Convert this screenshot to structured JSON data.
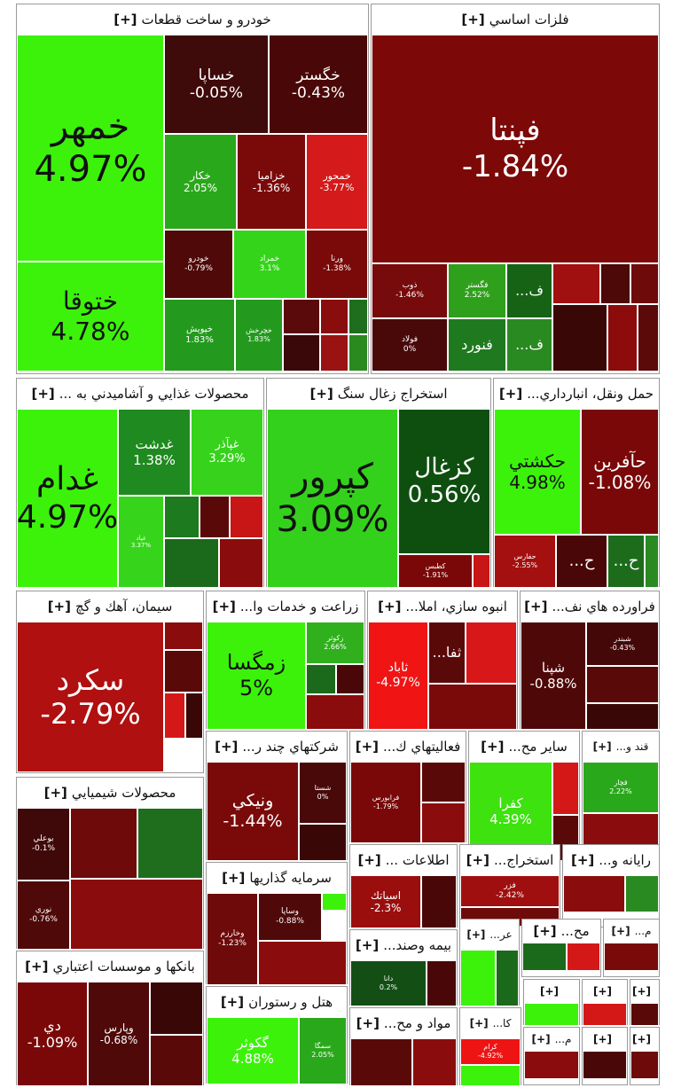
{
  "sectors": [
    {
      "name": "خودرو و ساخت قطعات",
      "tiles": [
        {
          "symbol": "خمهر",
          "change": "4.97%",
          "color": "#3cf20b"
        },
        {
          "symbol": "ختوقا",
          "change": "4.78%",
          "color": "#3cf20b"
        },
        {
          "symbol": "خساپا",
          "change": "-0.05%",
          "color": "#3f0a0a"
        },
        {
          "symbol": "خگستر",
          "change": "-0.43%",
          "color": "#4a0707"
        },
        {
          "symbol": "خکار",
          "change": "2.05%",
          "color": "#2aa81b"
        },
        {
          "symbol": "خزامیا",
          "change": "-1.36%",
          "color": "#7a0a0a"
        },
        {
          "symbol": "خمحور",
          "change": "-3.77%",
          "color": "#d41a1a"
        },
        {
          "symbol": "خودرو",
          "change": "-0.79%",
          "color": "#4f0909"
        },
        {
          "symbol": "خمراد",
          "change": "3.1%",
          "color": "#34d41a"
        },
        {
          "symbol": "ورنا",
          "change": "-1.38%",
          "color": "#7a0909"
        },
        {
          "symbol": "خپویش",
          "change": "1.83%",
          "color": "#239a1e"
        },
        {
          "symbol": "خچرخش",
          "change": "1.83%",
          "color": "#239a1e"
        },
        {
          "symbol": "",
          "change": "",
          "color": "#5a0a0a"
        },
        {
          "symbol": "",
          "change": "",
          "color": "#8a0d0d"
        },
        {
          "symbol": "",
          "change": "",
          "color": "#1e6e1e"
        },
        {
          "symbol": "",
          "change": "",
          "color": "#3a0808"
        },
        {
          "symbol": "",
          "change": "",
          "color": "#9b1212"
        },
        {
          "symbol": "",
          "change": "",
          "color": "#2a8a1f"
        }
      ]
    },
    {
      "name": "فلزات اساسي",
      "tiles": [
        {
          "symbol": "فپنتا",
          "change": "-1.84%",
          "color": "#7d0808"
        },
        {
          "symbol": "ذوب",
          "change": "-1.46%",
          "color": "#770a0a"
        },
        {
          "symbol": "فگستر",
          "change": "2.52%",
          "color": "#2fa01c"
        },
        {
          "symbol": "ف...",
          "change": "",
          "color": "#166316"
        },
        {
          "symbol": "فولاد",
          "change": "0%",
          "color": "#4a0909"
        },
        {
          "symbol": "فنورد",
          "change": "",
          "color": "#1f7a1f"
        },
        {
          "symbol": "ف...",
          "change": "",
          "color": "#2a8a22"
        },
        {
          "symbol": "",
          "change": "",
          "color": "#a01010"
        },
        {
          "symbol": "",
          "change": "",
          "color": "#4d0808"
        },
        {
          "symbol": "",
          "change": "",
          "color": "#6e0a0a"
        },
        {
          "symbol": "",
          "change": "",
          "color": "#3a0707"
        },
        {
          "symbol": "",
          "change": "",
          "color": "#8c0c0c"
        },
        {
          "symbol": "",
          "change": "",
          "color": "#5c0909"
        }
      ]
    },
    {
      "name": "محصولات غذايي و آشاميدني به ...",
      "tiles": [
        {
          "symbol": "غدام",
          "change": "4.97%",
          "color": "#3cf20b"
        },
        {
          "symbol": "غدشت",
          "change": "1.38%",
          "color": "#1f8a1f"
        },
        {
          "symbol": "غپآذر",
          "change": "3.29%",
          "color": "#36d21c"
        },
        {
          "symbol": "غپاد",
          "change": "3.37%",
          "color": "#37d41c"
        },
        {
          "symbol": "",
          "change": "",
          "color": "#1e7a1e"
        },
        {
          "symbol": "",
          "change": "",
          "color": "#5a0909"
        },
        {
          "symbol": "",
          "change": "",
          "color": "#c81616"
        },
        {
          "symbol": "",
          "change": "",
          "color": "#1b6a1b"
        },
        {
          "symbol": "",
          "change": "",
          "color": "#8a0c0c"
        }
      ]
    },
    {
      "name": "استخراج زغال سنگ",
      "tiles": [
        {
          "symbol": "كپرور",
          "change": "3.09%",
          "color": "#33d11b"
        },
        {
          "symbol": "كزغال",
          "change": "0.56%",
          "color": "#0e4f10"
        },
        {
          "symbol": "كطبس",
          "change": "-1.91%",
          "color": "#7a0808"
        },
        {
          "symbol": "",
          "change": "",
          "color": "#c81515"
        }
      ]
    },
    {
      "name": "حمل ونقل، انبارداري...",
      "tiles": [
        {
          "symbol": "حكشتي",
          "change": "4.98%",
          "color": "#3cf20b"
        },
        {
          "symbol": "حآفرين",
          "change": "-1.08%",
          "color": "#7a0808"
        },
        {
          "symbol": "حفارس",
          "change": "-2.55%",
          "color": "#a40f0f"
        },
        {
          "symbol": "ح...",
          "change": "",
          "color": "#4a0707"
        },
        {
          "symbol": "ح...",
          "change": "",
          "color": "#1c6c1c"
        },
        {
          "symbol": "",
          "change": "",
          "color": "#2a8a22"
        }
      ]
    },
    {
      "name": "سيمان، آهك و گچ",
      "tiles": [
        {
          "symbol": "سكرد",
          "change": "-2.79%",
          "color": "#b01010"
        },
        {
          "symbol": "",
          "change": "",
          "color": "#8a0c0c"
        },
        {
          "symbol": "",
          "change": "",
          "color": "#5a0909"
        },
        {
          "symbol": "",
          "change": "",
          "color": "#d41818"
        },
        {
          "symbol": "",
          "change": "",
          "color": "#3a0707"
        }
      ]
    },
    {
      "name": "زراعت و خدمات وا...",
      "tiles": [
        {
          "symbol": "زمگسا",
          "change": "5%",
          "color": "#3cf20b"
        },
        {
          "symbol": "زكوثر",
          "change": "2.66%",
          "color": "#2fb01c"
        },
        {
          "symbol": "",
          "change": "",
          "color": "#1b6a1b"
        },
        {
          "symbol": "",
          "change": "",
          "color": "#4a0707"
        },
        {
          "symbol": "",
          "change": "",
          "color": "#8a0c0c"
        }
      ]
    },
    {
      "name": "انبوه سازي، املا...",
      "tiles": [
        {
          "symbol": "ثاباد",
          "change": "-4.97%",
          "color": "#f01414"
        },
        {
          "symbol": "ثفا...",
          "change": "",
          "color": "#5a0909"
        },
        {
          "symbol": "",
          "change": "",
          "color": "#d81818"
        },
        {
          "symbol": "",
          "change": "",
          "color": "#7a0a0a"
        }
      ]
    },
    {
      "name": "فراورده هاي نف...",
      "tiles": [
        {
          "symbol": "شپنا",
          "change": "-0.88%",
          "color": "#4f0808"
        },
        {
          "symbol": "شبندر",
          "change": "-0.43%",
          "color": "#440808"
        },
        {
          "symbol": "",
          "change": "",
          "color": "#5a0909"
        },
        {
          "symbol": "",
          "change": "",
          "color": "#3a0707"
        }
      ]
    },
    {
      "name": "محصولات شيميايي",
      "tiles": [
        {
          "symbol": "بوعلي",
          "change": "-0.1%",
          "color": "#400909"
        },
        {
          "symbol": "نوري",
          "change": "-0.76%",
          "color": "#4f0909"
        },
        {
          "symbol": "",
          "change": "",
          "color": "#6e0a0a"
        },
        {
          "symbol": "",
          "change": "",
          "color": "#1e6e1e"
        },
        {
          "symbol": "",
          "change": "",
          "color": "#8a0c0c"
        }
      ]
    },
    {
      "name": "شركتهاي چند ر...",
      "tiles": [
        {
          "symbol": "ونيكي",
          "change": "-1.44%",
          "color": "#7a0a0a"
        },
        {
          "symbol": "شستا",
          "change": "0%",
          "color": "#4a0909"
        },
        {
          "symbol": "",
          "change": "",
          "color": "#3a0707"
        }
      ]
    },
    {
      "name": "فعاليتهاي ك...",
      "tiles": [
        {
          "symbol": "فرابورس",
          "change": "-1.79%",
          "color": "#7a0808"
        },
        {
          "symbol": "",
          "change": "",
          "color": "#5a0909"
        },
        {
          "symbol": "",
          "change": "",
          "color": "#8a0c0c"
        }
      ]
    },
    {
      "name": "ساير مح...",
      "tiles": [
        {
          "symbol": "كفرا",
          "change": "4.39%",
          "color": "#3ee20f"
        },
        {
          "symbol": "",
          "change": "",
          "color": "#d41818"
        },
        {
          "symbol": "",
          "change": "",
          "color": "#5a0909"
        }
      ]
    },
    {
      "name": "قند و...",
      "tiles": [
        {
          "symbol": "قچار",
          "change": "2.22%",
          "color": "#2aa81b"
        },
        {
          "symbol": "",
          "change": "",
          "color": "#8a0c0c"
        },
        {
          "symbol": "",
          "change": "",
          "color": "#3cf20b"
        }
      ]
    },
    {
      "name": "سرمايه گذاريها",
      "tiles": [
        {
          "symbol": "وخارزم",
          "change": "-1.23%",
          "color": "#6e0a0a"
        },
        {
          "symbol": "وساپا",
          "change": "-0.88%",
          "color": "#4f0909"
        },
        {
          "symbol": "",
          "change": "",
          "color": "#3cf20b"
        },
        {
          "symbol": "",
          "change": "",
          "color": "#8a0c0c"
        }
      ]
    },
    {
      "name": "اطلاعات ...",
      "tiles": [
        {
          "symbol": "اسياتك",
          "change": "-2.3%",
          "color": "#9a0e0e"
        },
        {
          "symbol": "",
          "change": "",
          "color": "#4a0707"
        }
      ]
    },
    {
      "name": "استخراج...",
      "tiles": [
        {
          "symbol": "فزر",
          "change": "-2.42%",
          "color": "#a00f0f"
        },
        {
          "symbol": "",
          "change": "",
          "color": "#6e0a0a"
        }
      ]
    },
    {
      "name": "رايانه و...",
      "tiles": [
        {
          "symbol": "",
          "change": "",
          "color": "#8a0c0c"
        },
        {
          "symbol": "",
          "change": "",
          "color": "#2a8a22"
        }
      ]
    },
    {
      "name": "بانكها و موسسات اعتباري",
      "tiles": [
        {
          "symbol": "دي",
          "change": "-1.09%",
          "color": "#7a0808"
        },
        {
          "symbol": "وپارس",
          "change": "-0.68%",
          "color": "#4f0909"
        },
        {
          "symbol": "",
          "change": "",
          "color": "#3a0707"
        },
        {
          "symbol": "",
          "change": "",
          "color": "#5a0909"
        }
      ]
    },
    {
      "name": "هتل و رستوران",
      "tiles": [
        {
          "symbol": "گكوثر",
          "change": "4.88%",
          "color": "#3cf20b"
        },
        {
          "symbol": "سمگا",
          "change": "2.05%",
          "color": "#2aa81b"
        }
      ]
    },
    {
      "name": "بيمه وصند...",
      "tiles": [
        {
          "symbol": "دانا",
          "change": "0.2%",
          "color": "#134f14"
        },
        {
          "symbol": "",
          "change": "",
          "color": "#4a0707"
        }
      ]
    },
    {
      "name": "عر...",
      "tiles": [
        {
          "symbol": "",
          "change": "",
          "color": "#3cf20b"
        },
        {
          "symbol": "",
          "change": "",
          "color": "#1b6a1b"
        }
      ]
    },
    {
      "name": "مح...",
      "tiles": [
        {
          "symbol": "",
          "change": "",
          "color": "#1b6a1b"
        },
        {
          "symbol": "",
          "change": "",
          "color": "#d41818"
        }
      ]
    },
    {
      "name": "م...",
      "tiles": [
        {
          "symbol": "",
          "change": "",
          "color": "#7a0a0a"
        }
      ]
    },
    {
      "name": "مواد و مح...",
      "tiles": [
        {
          "symbol": "",
          "change": "",
          "color": "#5a0909"
        },
        {
          "symbol": "",
          "change": "",
          "color": "#8a0c0c"
        }
      ]
    },
    {
      "name": "كا...",
      "tiles": [
        {
          "symbol": "كرام",
          "change": "-4.92%",
          "color": "#ee1414"
        },
        {
          "symbol": "",
          "change": "",
          "color": "#3cf20b"
        }
      ]
    },
    {
      "name": "",
      "tiles": [
        {
          "symbol": "",
          "change": "",
          "color": "#3cf20b"
        },
        {
          "symbol": "",
          "change": "",
          "color": "#1b6a1b"
        }
      ]
    },
    {
      "name": "",
      "tiles": [
        {
          "symbol": "",
          "change": "",
          "color": "#d41818"
        },
        {
          "symbol": "",
          "change": "",
          "color": "#8a0c0c"
        }
      ]
    },
    {
      "name": "",
      "tiles": [
        {
          "symbol": "",
          "change": "",
          "color": "#5a0909"
        },
        {
          "symbol": "",
          "change": "",
          "color": "#8a0c0c"
        }
      ]
    },
    {
      "name": "م...",
      "tiles": [
        {
          "symbol": "",
          "change": "",
          "color": "#8a0c0c"
        }
      ]
    },
    {
      "name": "",
      "tiles": [
        {
          "symbol": "",
          "change": "",
          "color": "#4a0707"
        }
      ]
    },
    {
      "name": "",
      "tiles": [
        {
          "symbol": "",
          "change": "",
          "color": "#6e0a0a"
        }
      ]
    }
  ]
}
